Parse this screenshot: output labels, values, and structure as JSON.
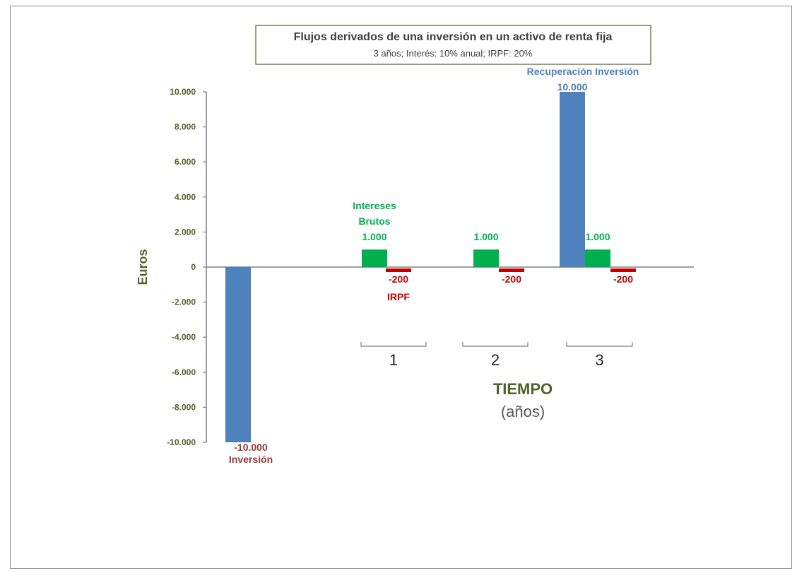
{
  "chart_data": {
    "type": "bar",
    "title": "Flujos derivados de una inversión en un activo de renta fija",
    "subtitle": "3 años; Interés: 10% anual; IRPF: 20%",
    "ylabel": "Euros",
    "xlabel": "TIEMPO",
    "xlabel_unit": "(años)",
    "ylim": [
      -10000,
      10000
    ],
    "yticks": [
      10000,
      8000,
      6000,
      4000,
      2000,
      0,
      -2000,
      -4000,
      -6000,
      -8000,
      -10000
    ],
    "ytick_labels": [
      "10.000",
      "8.000",
      "6.000",
      "4.000",
      "2.000",
      "0",
      "-2.000",
      "-4.000",
      "-6.000",
      "-8.000",
      "-10.000"
    ],
    "categories": [
      "0",
      "1",
      "2",
      "3"
    ],
    "period_labels": [
      "1",
      "2",
      "3"
    ],
    "grid": false,
    "colors": {
      "inversion": "#4f81bd",
      "intereses": "#00b050",
      "irpf": "#c00000",
      "axis": "#7f7f7f",
      "title_border": "#4f6228"
    },
    "bars": [
      {
        "category": "0",
        "kind": "inversion",
        "value": -10000,
        "label": "-10.000",
        "sublabel": "Inversión"
      },
      {
        "category": "1",
        "kind": "intereses",
        "value": 1000,
        "label": "1.000",
        "sublabel": "Intereses Brutos"
      },
      {
        "category": "1",
        "kind": "irpf",
        "value": -200,
        "label": "-200",
        "sublabel": "IRPF"
      },
      {
        "category": "2",
        "kind": "intereses",
        "value": 1000,
        "label": "1.000",
        "sublabel": ""
      },
      {
        "category": "2",
        "kind": "irpf",
        "value": -200,
        "label": "-200",
        "sublabel": ""
      },
      {
        "category": "3",
        "kind": "inversion",
        "value": 10000,
        "label": "10.000",
        "sublabel": "Recuperación Inversión"
      },
      {
        "category": "3",
        "kind": "intereses",
        "value": 1000,
        "label": "1.000",
        "sublabel": ""
      },
      {
        "category": "3",
        "kind": "irpf",
        "value": -200,
        "label": "-200",
        "sublabel": ""
      }
    ]
  }
}
